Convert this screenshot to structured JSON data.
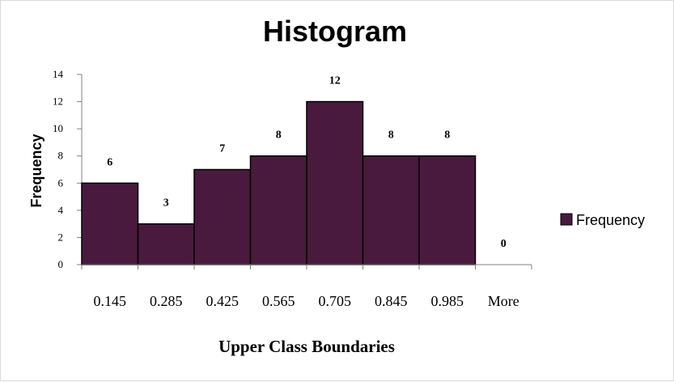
{
  "chart_data": {
    "type": "bar",
    "title": "Histogram",
    "xlabel": "Upper Class Boundaries",
    "ylabel": "Frequency",
    "categories": [
      "0.145",
      "0.285",
      "0.425",
      "0.565",
      "0.705",
      "0.845",
      "0.985",
      "More"
    ],
    "series": [
      {
        "name": "Frequency",
        "values": [
          6,
          3,
          7,
          8,
          12,
          8,
          8,
          0
        ]
      }
    ],
    "ylim": [
      0,
      14
    ],
    "yticks": [
      0,
      2,
      4,
      6,
      8,
      10,
      12,
      14
    ],
    "bar_color": "#4a1a3e",
    "bar_outline": "#000000",
    "legend_position": "right",
    "grid": false
  }
}
